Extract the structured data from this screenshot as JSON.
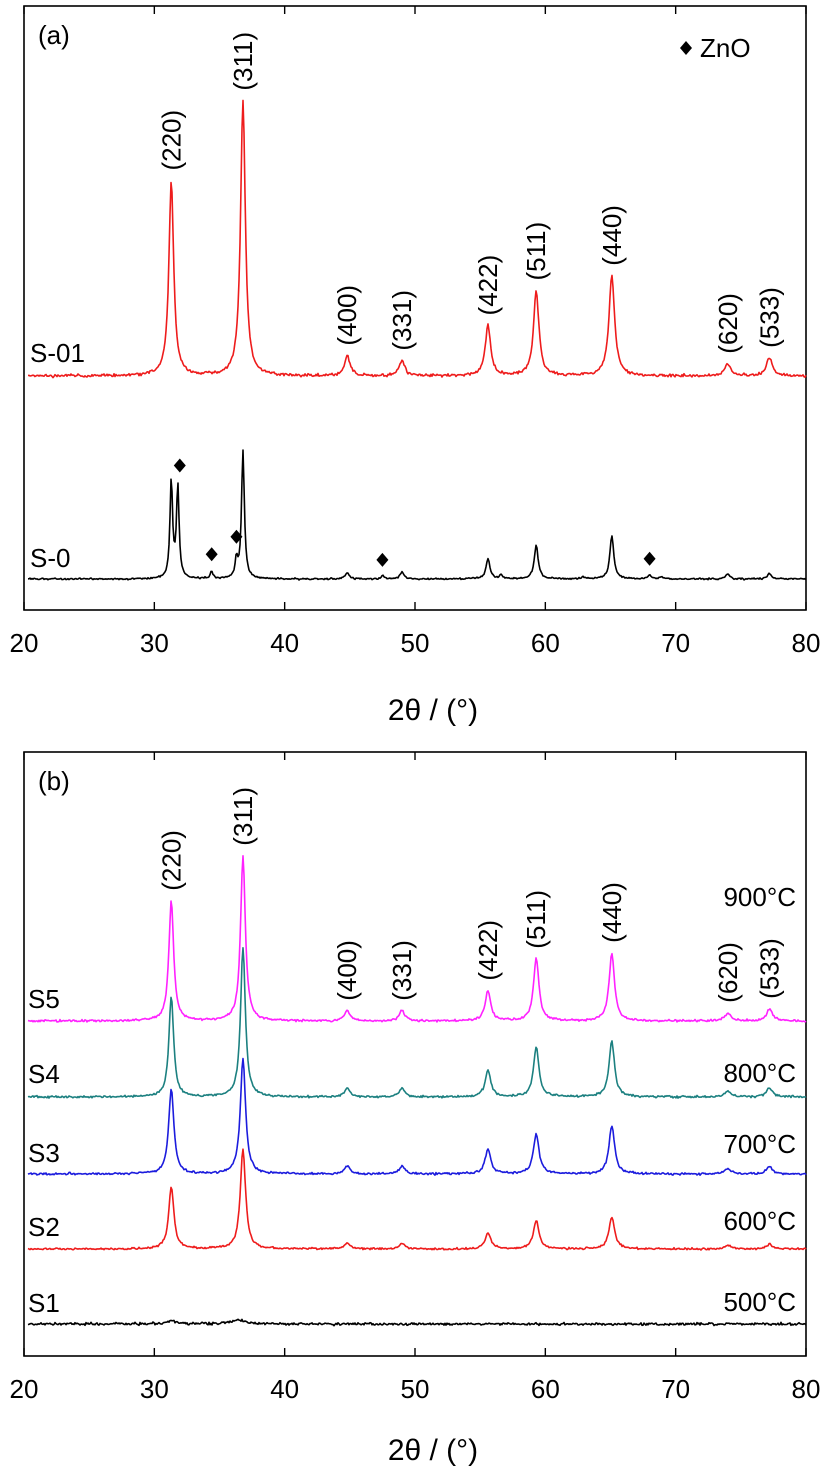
{
  "chart_data": [
    {
      "type": "line",
      "panel_label": "(a)",
      "xlabel": "2θ / (°)",
      "xlim": [
        20,
        80
      ],
      "x_ticks": [
        20,
        30,
        40,
        50,
        60,
        70,
        80
      ],
      "y_ticks_shown": false,
      "legend": {
        "marker": "◆",
        "label": "ZnO",
        "position": "top-right"
      },
      "series": [
        {
          "name": "S-01",
          "color": "#ee1c1c",
          "peaks": [
            {
              "x": 31.3,
              "h": 195,
              "w": 0.22
            },
            {
              "x": 36.8,
              "h": 275,
              "w": 0.22
            },
            {
              "x": 44.8,
              "h": 20,
              "w": 0.25
            },
            {
              "x": 49.0,
              "h": 15,
              "w": 0.25
            },
            {
              "x": 55.6,
              "h": 50,
              "w": 0.25
            },
            {
              "x": 59.3,
              "h": 85,
              "w": 0.25
            },
            {
              "x": 65.1,
              "h": 100,
              "w": 0.26
            },
            {
              "x": 74.0,
              "h": 12,
              "w": 0.28
            },
            {
              "x": 77.2,
              "h": 18,
              "w": 0.28
            }
          ]
        },
        {
          "name": "S-0",
          "color": "#000000",
          "peaks": [
            {
              "x": 31.3,
              "h": 98,
              "w": 0.12
            },
            {
              "x": 31.8,
              "h": 92,
              "w": 0.12
            },
            {
              "x": 34.4,
              "h": 8,
              "w": 0.12
            },
            {
              "x": 36.3,
              "h": 18,
              "w": 0.12
            },
            {
              "x": 36.8,
              "h": 128,
              "w": 0.13
            },
            {
              "x": 44.8,
              "h": 6,
              "w": 0.18
            },
            {
              "x": 47.5,
              "h": 3,
              "w": 0.15
            },
            {
              "x": 49.0,
              "h": 7,
              "w": 0.18
            },
            {
              "x": 55.6,
              "h": 20,
              "w": 0.18
            },
            {
              "x": 56.6,
              "h": 4,
              "w": 0.15
            },
            {
              "x": 59.3,
              "h": 34,
              "w": 0.18
            },
            {
              "x": 62.9,
              "h": 2,
              "w": 0.15
            },
            {
              "x": 65.1,
              "h": 43,
              "w": 0.18
            },
            {
              "x": 68.0,
              "h": 4,
              "w": 0.15
            },
            {
              "x": 68.9,
              "h": 2,
              "w": 0.15
            },
            {
              "x": 74.0,
              "h": 5,
              "w": 0.18
            },
            {
              "x": 77.2,
              "h": 6,
              "w": 0.18
            }
          ]
        }
      ],
      "zno_marker_x": [
        31.8,
        34.4,
        36.3,
        47.5,
        68.0
      ],
      "annotations": [
        {
          "text": "(220)",
          "x": 31.3
        },
        {
          "text": "(311)",
          "x": 36.8
        },
        {
          "text": "(400)",
          "x": 44.8
        },
        {
          "text": "(331)",
          "x": 49.0
        },
        {
          "text": "(422)",
          "x": 55.6
        },
        {
          "text": "(511)",
          "x": 59.3
        },
        {
          "text": "(440)",
          "x": 65.1
        },
        {
          "text": "(620)",
          "x": 74.0
        },
        {
          "text": "(533)",
          "x": 77.2
        }
      ]
    },
    {
      "type": "line",
      "panel_label": "(b)",
      "xlabel": "2θ / (°)",
      "xlim": [
        20,
        80
      ],
      "x_ticks": [
        20,
        30,
        40,
        50,
        60,
        70,
        80
      ],
      "y_ticks_shown": false,
      "series": [
        {
          "name": "S5",
          "temperature": "900°C",
          "color": "#ff22ff",
          "peaks": [
            {
              "x": 31.3,
              "h": 120,
              "w": 0.22
            },
            {
              "x": 36.8,
              "h": 165,
              "w": 0.22
            },
            {
              "x": 44.8,
              "h": 10,
              "w": 0.25
            },
            {
              "x": 49.0,
              "h": 10,
              "w": 0.25
            },
            {
              "x": 55.6,
              "h": 30,
              "w": 0.25
            },
            {
              "x": 59.3,
              "h": 62,
              "w": 0.25
            },
            {
              "x": 65.1,
              "h": 68,
              "w": 0.25
            },
            {
              "x": 74.0,
              "h": 8,
              "w": 0.28
            },
            {
              "x": 77.2,
              "h": 12,
              "w": 0.28
            }
          ]
        },
        {
          "name": "S4",
          "temperature": "800°C",
          "color": "#1c8080",
          "peaks": [
            {
              "x": 31.3,
              "h": 100,
              "w": 0.22
            },
            {
              "x": 36.8,
              "h": 150,
              "w": 0.22
            },
            {
              "x": 44.8,
              "h": 9,
              "w": 0.25
            },
            {
              "x": 49.0,
              "h": 9,
              "w": 0.25
            },
            {
              "x": 55.6,
              "h": 27,
              "w": 0.25
            },
            {
              "x": 59.3,
              "h": 50,
              "w": 0.25
            },
            {
              "x": 65.1,
              "h": 56,
              "w": 0.25
            },
            {
              "x": 74.0,
              "h": 6,
              "w": 0.28
            },
            {
              "x": 77.2,
              "h": 9,
              "w": 0.28
            }
          ]
        },
        {
          "name": "S3",
          "temperature": "700°C",
          "color": "#1c1cdd",
          "peaks": [
            {
              "x": 31.3,
              "h": 85,
              "w": 0.24
            },
            {
              "x": 36.8,
              "h": 115,
              "w": 0.24
            },
            {
              "x": 44.8,
              "h": 8,
              "w": 0.26
            },
            {
              "x": 49.0,
              "h": 8,
              "w": 0.26
            },
            {
              "x": 55.6,
              "h": 25,
              "w": 0.26
            },
            {
              "x": 59.3,
              "h": 40,
              "w": 0.26
            },
            {
              "x": 65.1,
              "h": 48,
              "w": 0.26
            },
            {
              "x": 74.0,
              "h": 5,
              "w": 0.28
            },
            {
              "x": 77.2,
              "h": 7,
              "w": 0.28
            }
          ]
        },
        {
          "name": "S2",
          "temperature": "600°C",
          "color": "#ee1c1c",
          "peaks": [
            {
              "x": 31.3,
              "h": 62,
              "w": 0.24
            },
            {
              "x": 36.8,
              "h": 100,
              "w": 0.24
            },
            {
              "x": 44.8,
              "h": 6,
              "w": 0.26
            },
            {
              "x": 49.0,
              "h": 5,
              "w": 0.26
            },
            {
              "x": 55.6,
              "h": 16,
              "w": 0.26
            },
            {
              "x": 59.3,
              "h": 28,
              "w": 0.26
            },
            {
              "x": 65.1,
              "h": 32,
              "w": 0.26
            },
            {
              "x": 74.0,
              "h": 4,
              "w": 0.28
            },
            {
              "x": 77.2,
              "h": 5,
              "w": 0.28
            }
          ]
        },
        {
          "name": "S1",
          "temperature": "500°C",
          "color": "#000000",
          "peaks": [
            {
              "x": 31.3,
              "h": 3,
              "w": 0.6
            },
            {
              "x": 36.4,
              "h": 4,
              "w": 0.6
            }
          ]
        }
      ],
      "annotations": [
        {
          "text": "(220)",
          "x": 31.3
        },
        {
          "text": "(311)",
          "x": 36.8
        },
        {
          "text": "(400)",
          "x": 44.8
        },
        {
          "text": "(331)",
          "x": 49.0
        },
        {
          "text": "(422)",
          "x": 55.6
        },
        {
          "text": "(511)",
          "x": 59.3
        },
        {
          "text": "(440)",
          "x": 65.1
        },
        {
          "text": "(620)",
          "x": 74.0
        },
        {
          "text": "(533)",
          "x": 77.2
        }
      ]
    }
  ]
}
